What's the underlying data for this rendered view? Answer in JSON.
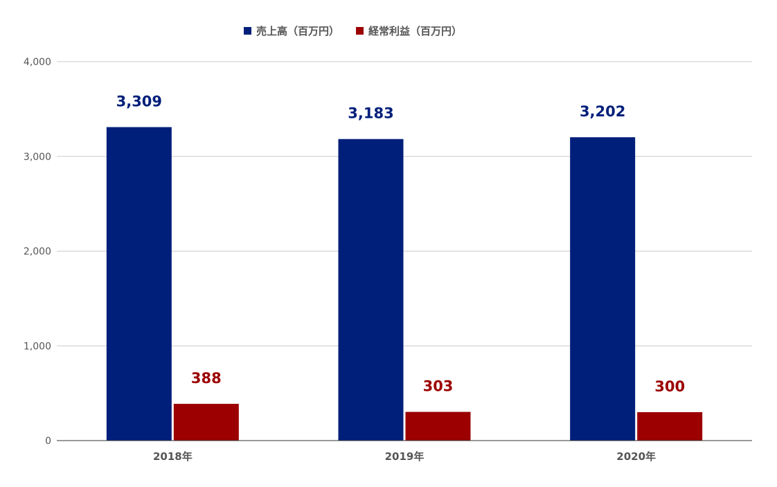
{
  "chart_data": {
    "type": "bar",
    "categories": [
      "2018年",
      "2019年",
      "2020年"
    ],
    "series": [
      {
        "name": "売上高（百万円）",
        "values": [
          3309,
          3183,
          3202
        ],
        "color": "#001f7a"
      },
      {
        "name": "経常利益（百万円）",
        "values": [
          388,
          303,
          300
        ],
        "color": "#9c0000"
      }
    ],
    "yticks": [
      "0",
      "1,000",
      "2,000",
      "3,000",
      "4,000"
    ],
    "ylim": [
      0,
      4000
    ],
    "data_labels": [
      [
        "3,309",
        "3,183",
        "3,202"
      ],
      [
        "388",
        "303",
        "300"
      ]
    ],
    "grid": true,
    "legend_position": "top-center"
  }
}
